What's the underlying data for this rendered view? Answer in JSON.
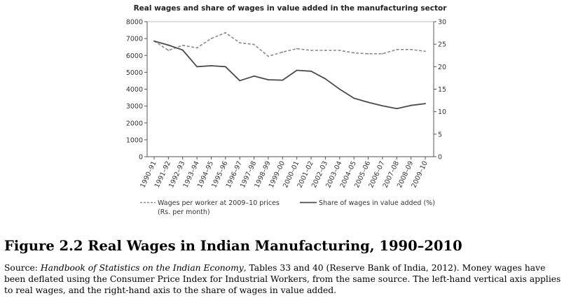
{
  "chart_data": {
    "type": "line",
    "title": "Real wages and share of wages in value added in the manufacturing sector",
    "categories": [
      "1990–91",
      "1991–92",
      "1992–93",
      "1993–94",
      "1994–95",
      "1995–96",
      "1996–97",
      "1997–98",
      "1998–99",
      "1999–00",
      "2000–01",
      "2001–02",
      "2002–03",
      "2003–04",
      "2004–05",
      "2005–06",
      "2006–07",
      "2007–08",
      "2008–09",
      "2009–10"
    ],
    "y_left": {
      "range": [
        0,
        8000
      ],
      "ticks": [
        "0",
        "1000",
        "2000",
        "3000",
        "4000",
        "5000",
        "6000",
        "7000",
        "8000"
      ]
    },
    "y_right": {
      "range": [
        0,
        30
      ],
      "ticks": [
        "0",
        "5",
        "10",
        "15",
        "20",
        "25",
        "30"
      ]
    },
    "grid": "horizontal-top-only",
    "legend_position": "bottom",
    "series": [
      {
        "name_line1": "Wages per worker at 2009–10 prices",
        "name_line2": "(Rs. per month)",
        "axis": "left",
        "style": "dashed",
        "color": "#8a8a8a",
        "values": [
          6850,
          6300,
          6600,
          6450,
          7000,
          7350,
          6750,
          6650,
          5950,
          6200,
          6400,
          6300,
          6300,
          6300,
          6150,
          6100,
          6100,
          6350,
          6350,
          6250
        ]
      },
      {
        "name": "Share of wages in value added (%)",
        "axis": "right",
        "style": "solid",
        "color": "#4a4a4a",
        "values": [
          25.7,
          24.8,
          23.7,
          20.0,
          20.2,
          20.0,
          16.9,
          17.9,
          17.1,
          17.0,
          19.2,
          19.0,
          17.3,
          15.0,
          13.0,
          12.1,
          11.3,
          10.7,
          11.4,
          11.8
        ]
      }
    ]
  },
  "figure": {
    "title": "Figure 2.2 Real Wages in Indian Manufacturing, 1990–2010",
    "caption_prefix": "Source: ",
    "caption_source_title": "Handbook of Statistics on the Indian Economy",
    "caption_rest": ", Tables 33 and 40 (Reserve Bank of India, 2012). Money wages have been deflated using the Consumer Price Index for Industrial Workers, from the same source. The left-hand vertical axis applies to real wages, and the right-hand axis to the share of wages in value added."
  }
}
